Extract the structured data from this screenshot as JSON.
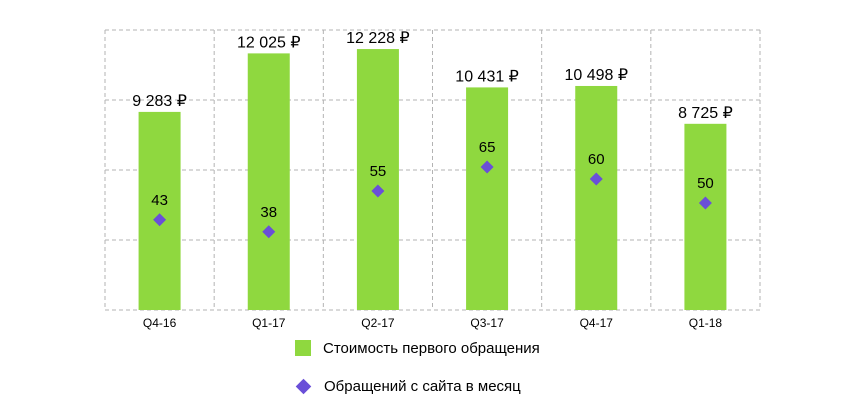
{
  "chart_data": {
    "type": "bar",
    "categories": [
      "Q4-16",
      "Q1-17",
      "Q2-17",
      "Q3-17",
      "Q4-17",
      "Q1-18"
    ],
    "series": [
      {
        "name": "Стоимость первого обращения",
        "type": "bar",
        "values": [
          9283,
          12025,
          12228,
          10431,
          10498,
          8725
        ],
        "labels": [
          "9 283 ₽",
          "12 025 ₽",
          "12 228 ₽",
          "10 431 ₽",
          "10 498 ₽",
          "8 725 ₽"
        ],
        "color": "#8fd83f"
      },
      {
        "name": "Обращений с сайта в месяц",
        "type": "scatter",
        "marker": "diamond",
        "values": [
          43,
          38,
          55,
          65,
          60,
          50
        ],
        "labels": [
          "43",
          "38",
          "55",
          "65",
          "60",
          "50"
        ],
        "color": "#6a4fd8"
      }
    ],
    "grid": true,
    "legend": "bottom"
  }
}
